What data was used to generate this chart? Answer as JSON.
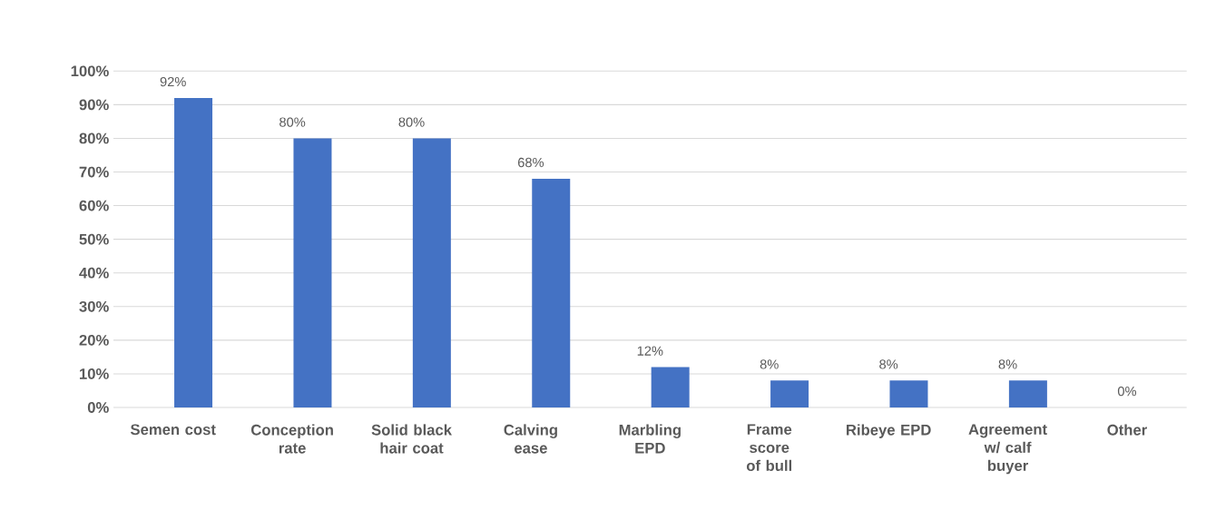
{
  "chart_data": {
    "type": "bar",
    "categories": [
      "Semen cost",
      "Conception rate",
      "Solid black hair coat",
      "Calving ease",
      "Marbling EPD",
      "Frame score of bull",
      "Ribeye EPD",
      "Agreement w/ calf buyer",
      "Other"
    ],
    "values": [
      92,
      80,
      80,
      68,
      12,
      8,
      8,
      8,
      0
    ],
    "value_labels": [
      "92%",
      "80%",
      "80%",
      "68%",
      "12%",
      "8%",
      "8%",
      "8%",
      "0%"
    ],
    "color": "#4472c4",
    "ylim": [
      0,
      100
    ],
    "yticks": [
      {
        "value": 0,
        "label": "0%"
      },
      {
        "value": 10,
        "label": "10%"
      },
      {
        "value": 20,
        "label": "20%"
      },
      {
        "value": 30,
        "label": "30%"
      },
      {
        "value": 40,
        "label": "40%"
      },
      {
        "value": 50,
        "label": "50%"
      },
      {
        "value": 60,
        "label": "60%"
      },
      {
        "value": 70,
        "label": "70%"
      },
      {
        "value": 80,
        "label": "80%"
      },
      {
        "value": 90,
        "label": "90%"
      },
      {
        "value": 100,
        "label": "100%"
      }
    ],
    "grid": "y"
  }
}
